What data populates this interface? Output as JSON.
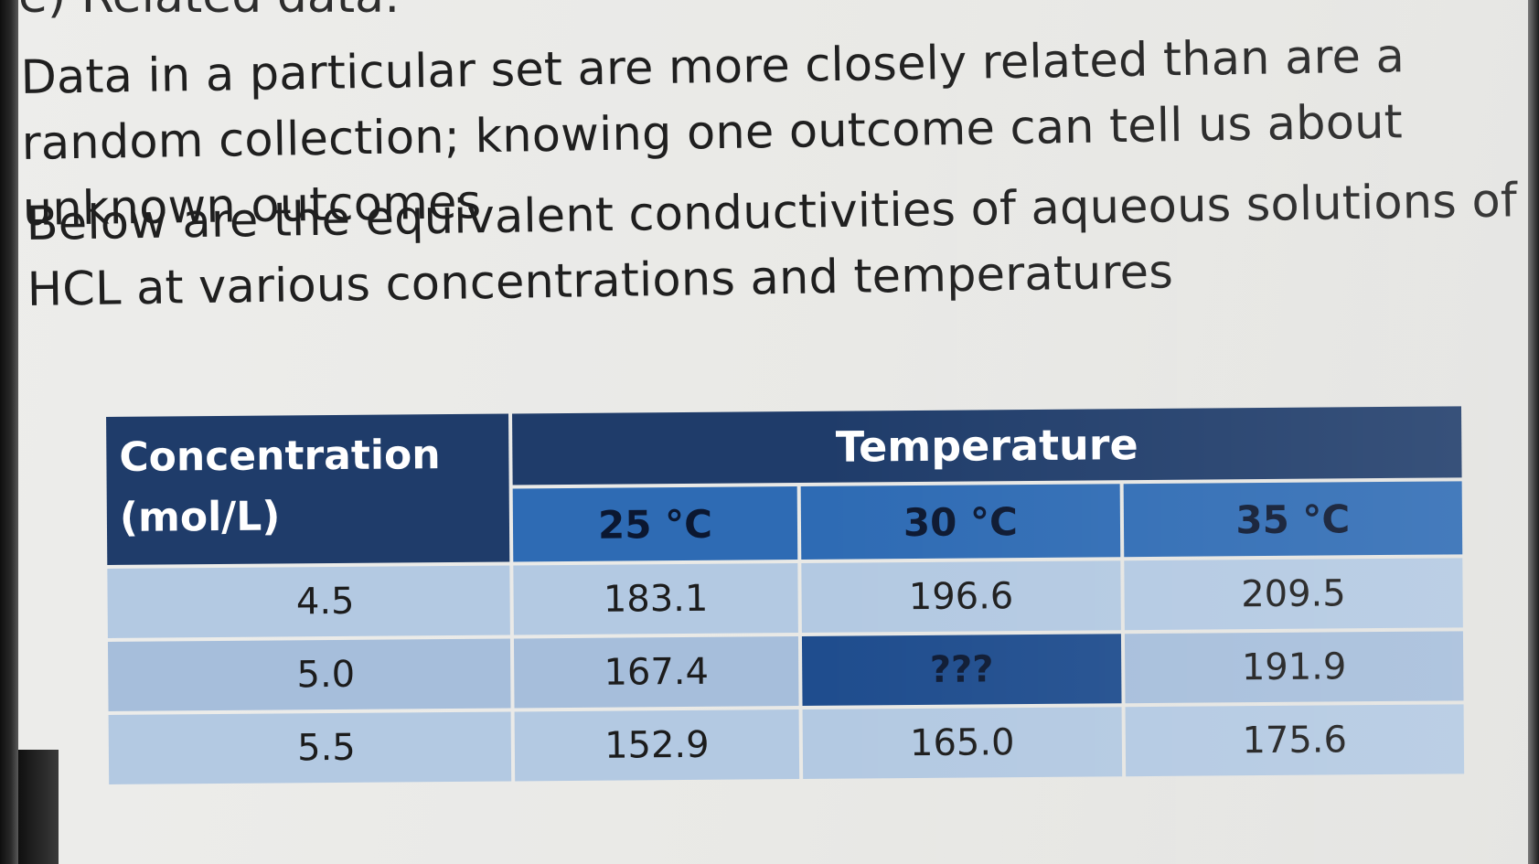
{
  "heading_cut": "e) Related data:",
  "paragraphs": {
    "p1": "Data in a particular set are more closely related than are a random collection; knowing one outcome can tell us about unknown outcomes",
    "p2": "Below are the equivalent conductivities of aqueous solutions of HCL at various concentrations and temperatures"
  },
  "table": {
    "conc_header_line1": "Concentration",
    "conc_header_line2": "(mol/L)",
    "temp_header": "Temperature",
    "temps": [
      "25 °C",
      "30 °C",
      "35 °C"
    ],
    "rows": [
      {
        "conc": "4.5",
        "v25": "183.1",
        "v30": "196.6",
        "v35": "209.5"
      },
      {
        "conc": "5.0",
        "v25": "167.4",
        "v30": "???",
        "v35": "191.9"
      },
      {
        "conc": "5.5",
        "v25": "152.9",
        "v30": "165.0",
        "v35": "175.6"
      }
    ]
  },
  "colors": {
    "header_dark": "#1f3c6a",
    "header_mid": "#2e6bb4",
    "cell_light": "#b3c9e2",
    "missing_cell": "#1f4d8e"
  }
}
